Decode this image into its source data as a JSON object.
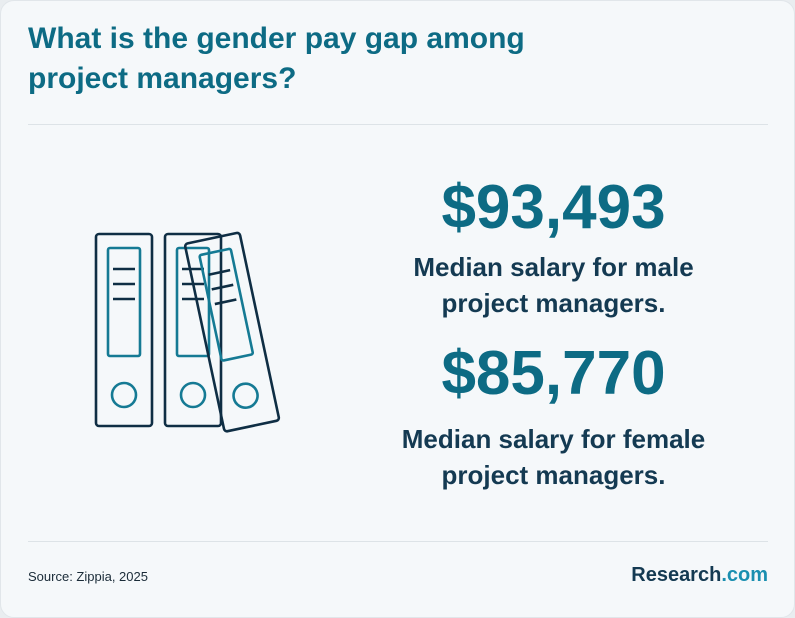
{
  "title": "What is the gender pay gap among project managers?",
  "stats": [
    {
      "value": "$93,493",
      "label": "Median salary for male project managers."
    },
    {
      "value": "$85,770",
      "label": "Median salary for female project managers."
    }
  ],
  "illustration": {
    "icon": "binders-icon"
  },
  "footer": {
    "source": "Source: Zippia, 2025",
    "brand_main": "Research",
    "brand_suffix": ".com"
  },
  "colors": {
    "title": "#0d6b84",
    "stat_value": "#0d6b84",
    "text_dark": "#143a52",
    "binder_outline": "#0f2e44",
    "binder_inner": "#157a94",
    "background": "#f5f8fa"
  }
}
